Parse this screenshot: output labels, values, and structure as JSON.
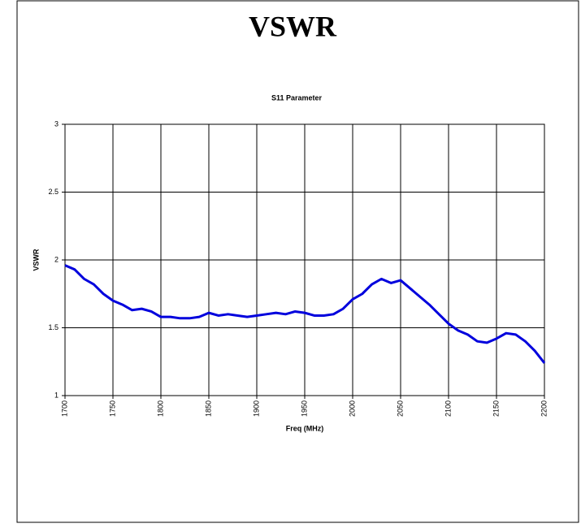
{
  "chart_data": {
    "type": "line",
    "title": "VSWR",
    "subtitle": "S11 Parameter",
    "x_label": "Freq (MHz)",
    "y_label": "VSWR",
    "x": [
      1700,
      1710,
      1720,
      1730,
      1740,
      1750,
      1760,
      1770,
      1780,
      1790,
      1800,
      1810,
      1820,
      1830,
      1840,
      1850,
      1860,
      1870,
      1880,
      1890,
      1900,
      1910,
      1920,
      1930,
      1940,
      1950,
      1960,
      1970,
      1980,
      1990,
      2000,
      2010,
      2020,
      2030,
      2040,
      2050,
      2060,
      2070,
      2080,
      2090,
      2100,
      2110,
      2120,
      2130,
      2140,
      2150,
      2160,
      2170,
      2180,
      2190,
      2200
    ],
    "series": [
      {
        "name": "VSWR",
        "color": "#0000dd",
        "values": [
          1.96,
          1.93,
          1.86,
          1.82,
          1.75,
          1.7,
          1.67,
          1.63,
          1.64,
          1.62,
          1.58,
          1.58,
          1.57,
          1.57,
          1.58,
          1.61,
          1.59,
          1.6,
          1.59,
          1.58,
          1.59,
          1.6,
          1.61,
          1.6,
          1.62,
          1.61,
          1.59,
          1.59,
          1.6,
          1.64,
          1.71,
          1.75,
          1.82,
          1.86,
          1.83,
          1.85,
          1.79,
          1.73,
          1.67,
          1.6,
          1.53,
          1.48,
          1.45,
          1.4,
          1.39,
          1.42,
          1.46,
          1.45,
          1.4,
          1.33,
          1.24
        ]
      }
    ],
    "xlim": [
      1700,
      2200
    ],
    "xticks": [
      1700,
      1750,
      1800,
      1850,
      1900,
      1950,
      2000,
      2050,
      2100,
      2150,
      2200
    ],
    "ylim": [
      1,
      3
    ],
    "yticks": [
      1,
      1.5,
      2,
      2.5,
      3
    ],
    "grid": true
  }
}
